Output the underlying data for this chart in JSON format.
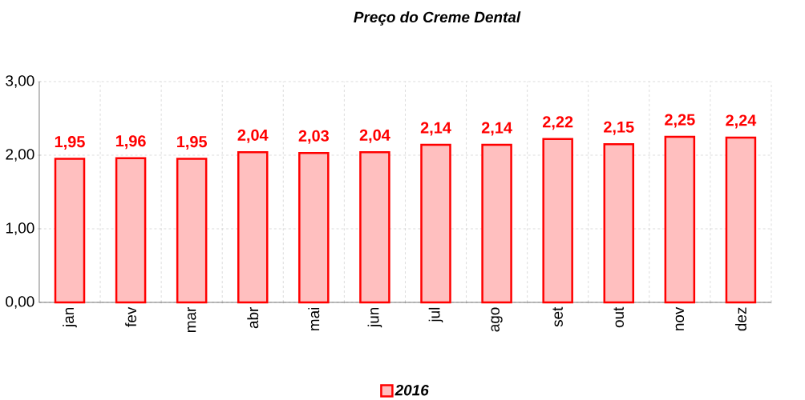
{
  "chart_data": {
    "type": "bar",
    "title": "Preço do Creme Dental",
    "categories": [
      "jan",
      "fev",
      "mar",
      "abr",
      "mai",
      "jun",
      "jul",
      "ago",
      "set",
      "out",
      "nov",
      "dez"
    ],
    "series": [
      {
        "name": "2016",
        "color": "#ff0000",
        "values": [
          1.95,
          1.96,
          1.95,
          2.04,
          2.03,
          2.04,
          2.14,
          2.14,
          2.22,
          2.15,
          2.25,
          2.24
        ],
        "value_labels": [
          "1,95",
          "1,96",
          "1,95",
          "2,04",
          "2,03",
          "2,04",
          "2,14",
          "2,14",
          "2,22",
          "2,15",
          "2,25",
          "2,24"
        ]
      }
    ],
    "ylim": [
      0,
      3
    ],
    "yticks": [
      {
        "value": 0,
        "label": "0,00"
      },
      {
        "value": 1,
        "label": "1,00"
      },
      {
        "value": 2,
        "label": "2,00"
      },
      {
        "value": 3,
        "label": "3,00"
      }
    ],
    "grid": true,
    "legend": "bottom"
  }
}
